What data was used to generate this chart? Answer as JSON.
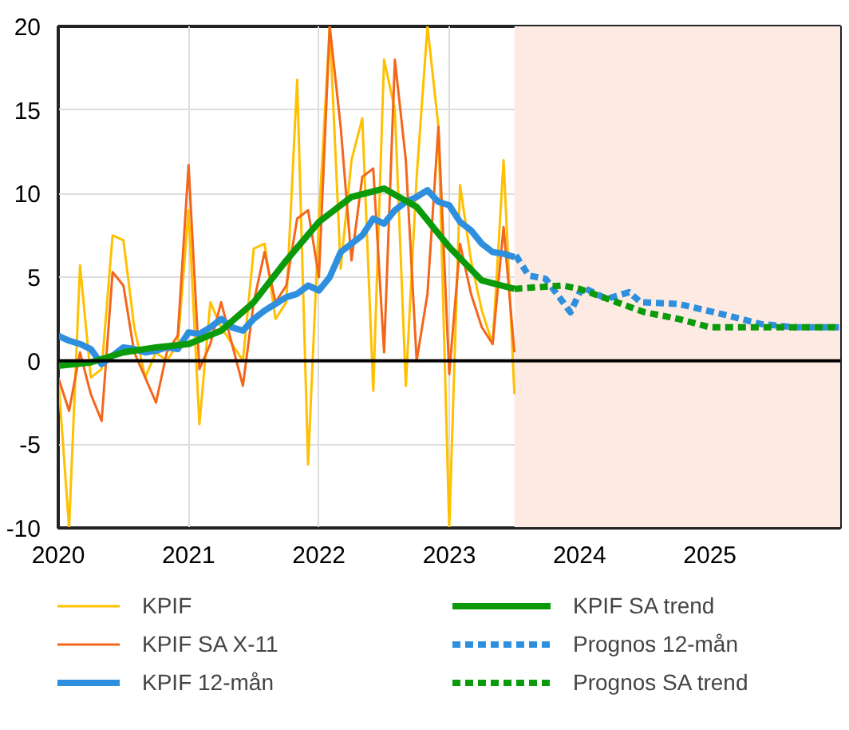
{
  "chart_data": {
    "type": "line",
    "xlim": [
      2020,
      2026
    ],
    "ylim": [
      -10,
      20
    ],
    "xticks": [
      2020,
      2021,
      2022,
      2023,
      2024,
      2025
    ],
    "yticks": [
      -10,
      -5,
      0,
      5,
      10,
      15,
      20
    ],
    "grid": true,
    "legend": "bottom",
    "line_style": "solid",
    "marker": "none",
    "ref_lines": [
      {
        "axis": "y",
        "value": 0,
        "color": "#000000"
      }
    ],
    "bands": [
      {
        "axis": "x",
        "from": 2023.5,
        "to": 2026,
        "color": "#fdebe3"
      }
    ],
    "x": [
      2020.0,
      2020.083,
      2020.167,
      2020.25,
      2020.333,
      2020.417,
      2020.5,
      2020.583,
      2020.667,
      2020.75,
      2020.833,
      2020.917,
      2021.0,
      2021.083,
      2021.167,
      2021.25,
      2021.333,
      2021.417,
      2021.5,
      2021.583,
      2021.667,
      2021.75,
      2021.833,
      2021.917,
      2022.0,
      2022.083,
      2022.167,
      2022.25,
      2022.333,
      2022.417,
      2022.5,
      2022.583,
      2022.667,
      2022.75,
      2022.833,
      2022.917,
      2023.0,
      2023.083,
      2023.167,
      2023.25,
      2023.333,
      2023.417,
      2023.5
    ],
    "series": [
      {
        "name": "KPIF",
        "color": "#ffc000",
        "values": [
          -1,
          -10,
          5.7,
          -1,
          -0.5,
          7.5,
          7.2,
          2,
          -1,
          0.5,
          0,
          1,
          9,
          -3.8,
          3.5,
          2,
          1,
          0,
          6.7,
          7,
          2.5,
          3.5,
          16.8,
          -6.2,
          8.5,
          20,
          5.5,
          12,
          14.5,
          -1.8,
          18,
          15,
          -1.5,
          11,
          20,
          14,
          -10,
          10.5,
          6,
          3,
          1,
          12,
          -2
        ]
      },
      {
        "name": "KPIF SA X-11",
        "color": "#f4661b",
        "values": [
          -1,
          -3,
          0.5,
          -2,
          -3.6,
          5.3,
          4.5,
          0.5,
          -1,
          -2.5,
          0.5,
          1.5,
          11.7,
          -0.5,
          1,
          3.5,
          1,
          -1.5,
          3.5,
          6.5,
          3.5,
          4.5,
          8.5,
          9,
          5,
          20,
          14,
          6,
          11,
          11.5,
          0.5,
          18,
          12,
          0,
          4,
          14,
          -0.8,
          7,
          4,
          2,
          1,
          8,
          0.5
        ]
      },
      {
        "name": "KPIF 12-mån",
        "color": "#2e8fdf",
        "values": [
          1.5,
          1.2,
          1,
          0.7,
          -0.2,
          0.3,
          0.8,
          0.7,
          0.5,
          0.6,
          0.8,
          0.7,
          1.7,
          1.6,
          2,
          2.5,
          2,
          1.8,
          2.5,
          3,
          3.4,
          3.8,
          4,
          4.5,
          4.2,
          5,
          6.5,
          7,
          7.5,
          8.5,
          8.2,
          9,
          9.5,
          9.8,
          10.2,
          9.5,
          9.3,
          8.3,
          7.8,
          7,
          6.5,
          6.4,
          6.2
        ]
      },
      {
        "name": "KPIF SA trend",
        "color": "#0a9a0a",
        "x": [
          2020.0,
          2020.25,
          2020.5,
          2020.75,
          2021.0,
          2021.25,
          2021.5,
          2021.75,
          2022.0,
          2022.25,
          2022.5,
          2022.75,
          2023.0,
          2023.25,
          2023.5
        ],
        "values": [
          -0.3,
          -0.1,
          0.5,
          0.8,
          1.0,
          1.8,
          3.5,
          6,
          8.3,
          9.8,
          10.3,
          9.2,
          6.8,
          4.8,
          4.3
        ]
      },
      {
        "name": "Prognos 12-mån",
        "color": "#2e8fdf",
        "line_style": "dashed",
        "x": [
          2023.51,
          2023.61,
          2023.74,
          2023.93,
          2024.02,
          2024.21,
          2024.38,
          2024.47,
          2024.76,
          2025.14,
          2025.39,
          2025.65,
          2025.99
        ],
        "values": [
          6.3,
          5.1,
          4.9,
          2.9,
          4.4,
          3.7,
          4.1,
          3.5,
          3.4,
          2.7,
          2.2,
          2.0,
          2.0
        ]
      },
      {
        "name": "Prognos SA trend",
        "color": "#0a9a0a",
        "line_style": "dashed",
        "x": [
          2023.5,
          2023.87,
          2024.0,
          2024.25,
          2024.5,
          2024.76,
          2025.0,
          2025.5,
          2026.0
        ],
        "values": [
          4.3,
          4.5,
          4.3,
          3.6,
          2.9,
          2.5,
          2.0,
          2.0,
          2.0
        ]
      }
    ]
  }
}
